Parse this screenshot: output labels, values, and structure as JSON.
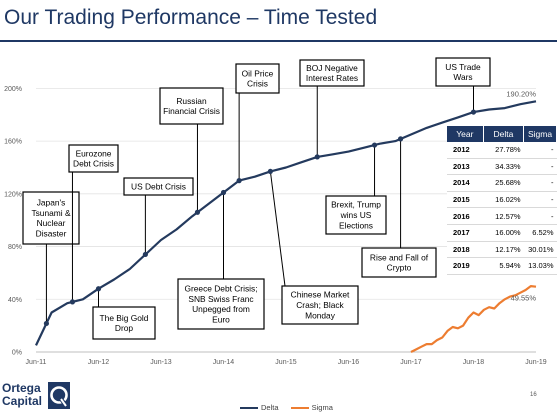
{
  "page": {
    "title": "Our Trading Performance – Time Tested",
    "page_number": "16"
  },
  "logo": {
    "line1": "Ortega",
    "line2": "Capital",
    "icon": "ortega-q-logo-icon"
  },
  "colors": {
    "delta": "#243a5e",
    "sigma": "#ed7d31",
    "header": "#1f3864"
  },
  "chart_data": {
    "type": "line",
    "title": "Our Trading Performance – Time Tested",
    "xlabel": "",
    "ylabel": "",
    "x_tick_labels": [
      "Jun-11",
      "Jun-12",
      "Jun-13",
      "Jun-14",
      "Jun-15",
      "Jun-16",
      "Jun-17",
      "Jun-18",
      "Jun-19"
    ],
    "y_tick_labels": [
      "0%",
      "40%",
      "80%",
      "120%",
      "160%",
      "200%"
    ],
    "ylim": [
      0,
      220
    ],
    "grid": true,
    "legend_position": "bottom-center",
    "series": [
      {
        "name": "Delta",
        "end_label": "190.20%",
        "points": [
          [
            "2011-06",
            5
          ],
          [
            "2011-09",
            30
          ],
          [
            "2011-12",
            37
          ],
          [
            "2012-03",
            40
          ],
          [
            "2012-06",
            48
          ],
          [
            "2012-09",
            55
          ],
          [
            "2012-12",
            63
          ],
          [
            "2013-03",
            74
          ],
          [
            "2013-06",
            85
          ],
          [
            "2013-09",
            93
          ],
          [
            "2013-12",
            103
          ],
          [
            "2014-03",
            112
          ],
          [
            "2014-06",
            121
          ],
          [
            "2014-09",
            130
          ],
          [
            "2014-12",
            133
          ],
          [
            "2015-03",
            137
          ],
          [
            "2015-06",
            140
          ],
          [
            "2015-09",
            144
          ],
          [
            "2015-12",
            148
          ],
          [
            "2016-03",
            150
          ],
          [
            "2016-06",
            152
          ],
          [
            "2016-09",
            155
          ],
          [
            "2016-12",
            158
          ],
          [
            "2017-03",
            160
          ],
          [
            "2017-06",
            165
          ],
          [
            "2017-09",
            170
          ],
          [
            "2017-12",
            174
          ],
          [
            "2018-03",
            178
          ],
          [
            "2018-06",
            182
          ],
          [
            "2018-09",
            184
          ],
          [
            "2018-12",
            185
          ],
          [
            "2019-03",
            188
          ],
          [
            "2019-06",
            190.2
          ]
        ]
      },
      {
        "name": "Sigma",
        "end_label": "49.55%",
        "points": [
          [
            "2017-06",
            0
          ],
          [
            "2017-07",
            2
          ],
          [
            "2017-08",
            4
          ],
          [
            "2017-09",
            6
          ],
          [
            "2017-10",
            6
          ],
          [
            "2017-11",
            9
          ],
          [
            "2017-12",
            11
          ],
          [
            "2018-01",
            16
          ],
          [
            "2018-02",
            19
          ],
          [
            "2018-03",
            18
          ],
          [
            "2018-04",
            20
          ],
          [
            "2018-05",
            26
          ],
          [
            "2018-06",
            30
          ],
          [
            "2018-07",
            28
          ],
          [
            "2018-08",
            32
          ],
          [
            "2018-09",
            34
          ],
          [
            "2018-10",
            33
          ],
          [
            "2018-11",
            37
          ],
          [
            "2018-12",
            40
          ],
          [
            "2019-01",
            42
          ],
          [
            "2019-02",
            43
          ],
          [
            "2019-03",
            45
          ],
          [
            "2019-04",
            47
          ],
          [
            "2019-05",
            50
          ],
          [
            "2019-06",
            49.55
          ]
        ]
      }
    ],
    "annotations": [
      {
        "text": [
          "Japan's",
          "Tsunami &",
          "Nuclear",
          "Disaster"
        ],
        "date": "2011-08"
      },
      {
        "text": [
          "Eurozone",
          "Debt Crisis"
        ],
        "date": "2012-01"
      },
      {
        "text": [
          "The Big Gold",
          "Drop"
        ],
        "date": "2012-06"
      },
      {
        "text": [
          "US Debt Crisis"
        ],
        "date": "2013-03"
      },
      {
        "text": [
          "Russian",
          "Financial Crisis"
        ],
        "date": "2014-01"
      },
      {
        "text": [
          "Greece Debt Crisis;",
          "SNB Swiss Franc",
          "Unpegged from",
          "Euro"
        ],
        "date": "2014-06"
      },
      {
        "text": [
          "Oil Price",
          "Crisis"
        ],
        "date": "2014-09"
      },
      {
        "text": [
          "Chinese Market",
          "Crash; Black",
          "Monday"
        ],
        "date": "2015-03"
      },
      {
        "text": [
          "BOJ Negative",
          "Interest Rates"
        ],
        "date": "2015-12"
      },
      {
        "text": [
          "Brexit, Trump",
          "wins US",
          "Elections"
        ],
        "date": "2016-11"
      },
      {
        "text": [
          "Rise and Fall of",
          "Crypto"
        ],
        "date": "2017-04"
      },
      {
        "text": [
          "US Trade",
          "Wars"
        ],
        "date": "2018-06"
      }
    ]
  },
  "table": {
    "headers": [
      "Year",
      "Delta",
      "Sigma"
    ],
    "rows": [
      [
        "2012",
        "27.78%",
        "-"
      ],
      [
        "2013",
        "34.33%",
        "-"
      ],
      [
        "2014",
        "25.68%",
        "-"
      ],
      [
        "2015",
        "16.02%",
        "-"
      ],
      [
        "2016",
        "12.57%",
        "-"
      ],
      [
        "2017",
        "16.00%",
        "6.52%"
      ],
      [
        "2018",
        "12.17%",
        "30.01%"
      ],
      [
        "2019",
        "5.94%",
        "13.03%"
      ]
    ]
  }
}
